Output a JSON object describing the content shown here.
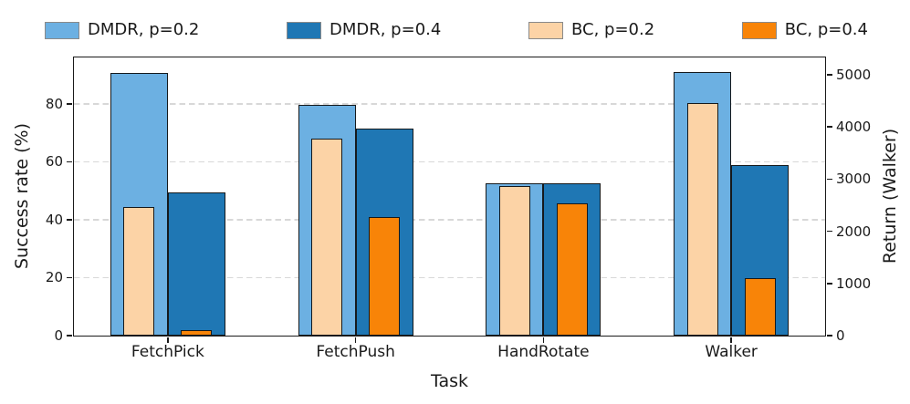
{
  "figure": {
    "xlabel": "Task",
    "ylabel_left": "Success rate (%)",
    "ylabel_right": "Return (Walker)"
  },
  "legend": {
    "position": "top",
    "items": [
      {
        "label": "DMDR, p=0.2",
        "color": "#6CB0E2"
      },
      {
        "label": "DMDR, p=0.4",
        "color": "#1F77B4"
      },
      {
        "label": "BC, p=0.2",
        "color": "#FCD3A6"
      },
      {
        "label": "BC, p=0.4",
        "color": "#F88408"
      }
    ]
  },
  "chart_data": {
    "type": "bar",
    "title": "",
    "xlabel": "Task",
    "ylabel_left": "Success rate (%)",
    "ylabel_right": "Return (Walker)",
    "categories": [
      "FetchPick",
      "FetchPush",
      "HandRotate",
      "Walker"
    ],
    "left_axis": {
      "ticks": [
        0,
        20,
        40,
        60,
        80
      ],
      "range": [
        0,
        96
      ]
    },
    "right_axis": {
      "ticks": [
        0,
        1000,
        2000,
        3000,
        4000,
        5000
      ],
      "range": [
        0,
        5330
      ]
    },
    "grid": "dashed horizontal lines at left-axis ticks",
    "legend_position": "top",
    "note": "FetchPick/FetchPush/HandRotate bars read success rate (%) on the left axis; Walker bars read return on the right axis. BC bars are drawn narrower, overlaid inside the DMDR bars.",
    "series": [
      {
        "name": "DMDR, p=0.2",
        "color": "#6CB0E2",
        "slot": "left-outer",
        "values": [
          90.5,
          79.5,
          52.5,
          5050
        ]
      },
      {
        "name": "DMDR, p=0.4",
        "color": "#1F77B4",
        "slot": "right-outer",
        "values": [
          49.5,
          71.5,
          52.5,
          3270
        ]
      },
      {
        "name": "BC, p=0.2",
        "color": "#FCD3A6",
        "slot": "left-inner",
        "values": [
          44.5,
          68.0,
          51.5,
          4450
        ]
      },
      {
        "name": "BC, p=0.4",
        "color": "#F88408",
        "slot": "right-inner",
        "values": [
          2.0,
          41.0,
          45.5,
          1100
        ]
      }
    ]
  }
}
